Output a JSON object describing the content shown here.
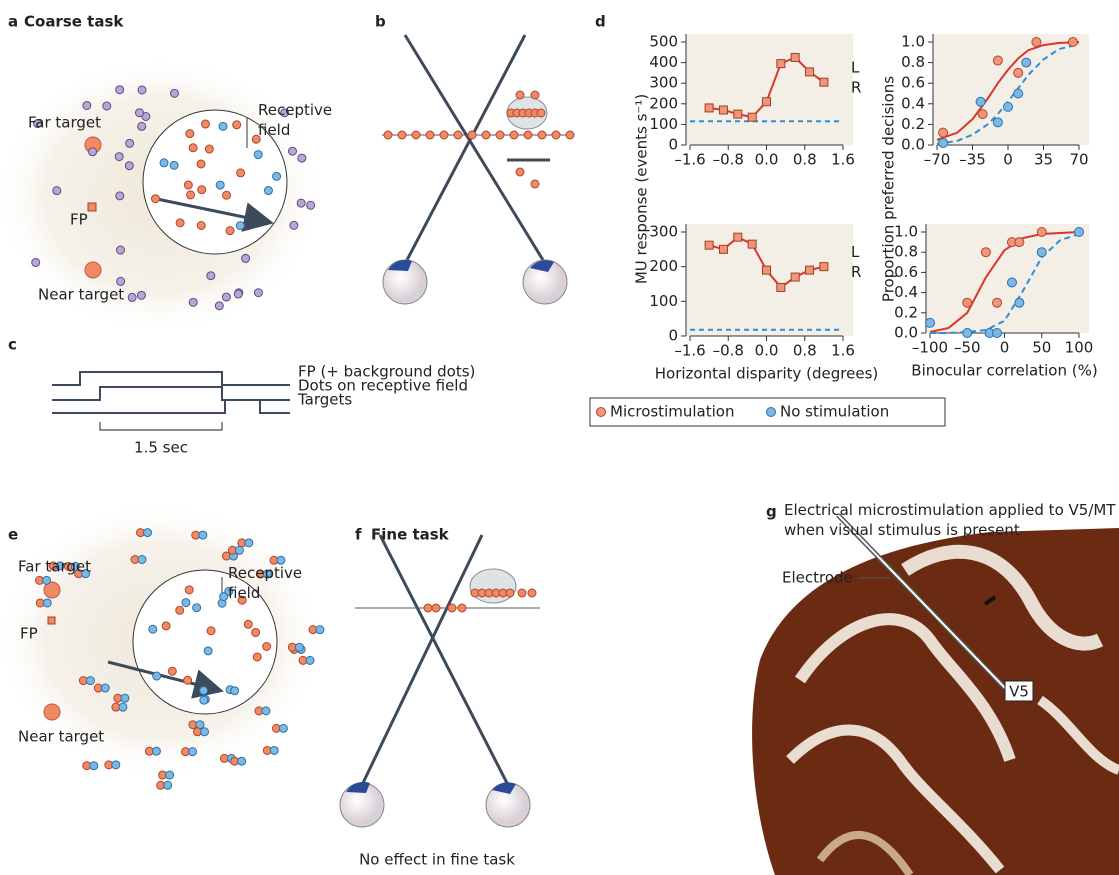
{
  "panels": {
    "a": {
      "label": "a",
      "title": "Coarse task",
      "far_target": "Far target",
      "receptive_field": "Receptive field",
      "fp": "FP",
      "near_target": "Near target"
    },
    "b": {
      "label": "b"
    },
    "c": {
      "label": "c",
      "traces": [
        "FP (+ background dots)",
        "Dots on receptive field",
        "Targets"
      ],
      "scale": "1.5 sec"
    },
    "d": {
      "label": "d"
    },
    "e": {
      "label": "e",
      "far_target": "Far target",
      "receptive_field": "Receptive field",
      "fp": "FP",
      "near_target": "Near target"
    },
    "f": {
      "label": "f",
      "title": "Fine task",
      "caption": "No effect in fine task"
    },
    "g": {
      "label": "g",
      "caption": "Electrical microstimulation applied to V5/MT when visual stimulus is present",
      "electrode": "Electrode",
      "area": "V5"
    }
  },
  "chart_data": [
    {
      "type": "line",
      "ylabel": "MU response (events s⁻¹)",
      "x": [
        -1.2,
        -0.9,
        -0.6,
        -0.3,
        0.0,
        0.3,
        0.6,
        0.9,
        1.2
      ],
      "xlim": [
        -1.6,
        1.6
      ],
      "xticks": [
        {
          "value": -1.6,
          "label": "–1.6"
        },
        {
          "value": -0.8,
          "label": "–0.8"
        },
        {
          "value": 0,
          "label": "0.0"
        },
        0.8,
        1.6
      ],
      "ylim": [
        0,
        500
      ],
      "yticks": [
        0,
        100,
        200,
        300,
        400,
        500
      ],
      "series": [
        {
          "color": "#d9372b",
          "values": [
            180,
            170,
            150,
            135,
            210,
            395,
            425,
            355,
            305
          ]
        }
      ],
      "baseline": 115,
      "baseline_color": "#2f8fd8",
      "annotations": [
        "L",
        "R"
      ]
    },
    {
      "type": "scatter",
      "ylabel": "Proportion preferred decisions",
      "xlim": [
        -70,
        70
      ],
      "xticks": [
        {
          "value": -70,
          "label": "–70"
        },
        {
          "value": -35,
          "label": "–35"
        },
        0,
        35,
        70
      ],
      "ylim": [
        0,
        1
      ],
      "yticks": [
        {
          "value": 0,
          "label": "0.0"
        },
        0.2,
        0.4,
        0.6,
        0.8,
        {
          "value": 1,
          "label": "1.0"
        }
      ],
      "series": [
        {
          "name": "Microstimulation",
          "color": "#f0947a",
          "x": [
            -64,
            -25,
            -10,
            10,
            28,
            64
          ],
          "values": [
            0.12,
            0.3,
            0.82,
            0.7,
            1.0,
            1.0
          ]
        },
        {
          "name": "No stimulation",
          "color": "#7ab8e6",
          "x": [
            -64,
            -27,
            -10,
            0,
            10,
            18
          ],
          "values": [
            0.02,
            0.42,
            0.22,
            0.37,
            0.5,
            0.8
          ]
        }
      ],
      "fits": [
        {
          "color": "#d9372b",
          "dashed": false,
          "x": [
            -70,
            -50,
            -35,
            -20,
            -10,
            0,
            10,
            20,
            35,
            50,
            70
          ],
          "values": [
            0.05,
            0.12,
            0.25,
            0.45,
            0.6,
            0.73,
            0.84,
            0.92,
            0.97,
            0.99,
            1.0
          ]
        },
        {
          "color": "#2f8fd8",
          "dashed": true,
          "x": [
            -70,
            -50,
            -35,
            -20,
            -10,
            0,
            10,
            20,
            35,
            50,
            70
          ],
          "values": [
            0.01,
            0.04,
            0.1,
            0.2,
            0.3,
            0.42,
            0.55,
            0.68,
            0.83,
            0.93,
            0.98
          ]
        }
      ]
    },
    {
      "type": "line",
      "xlabel": "Horizontal disparity (degrees)",
      "x": [
        -1.2,
        -0.9,
        -0.6,
        -0.3,
        0.0,
        0.3,
        0.6,
        0.9,
        1.2
      ],
      "xlim": [
        -1.6,
        1.6
      ],
      "xticks": [
        {
          "value": -1.6,
          "label": "–1.6"
        },
        {
          "value": -0.8,
          "label": "–0.8"
        },
        {
          "value": 0,
          "label": "0.0"
        },
        0.8,
        1.6
      ],
      "ylim": [
        0,
        300
      ],
      "yticks": [
        0,
        100,
        200,
        300
      ],
      "series": [
        {
          "color": "#d9372b",
          "values": [
            262,
            250,
            285,
            265,
            190,
            140,
            170,
            190,
            200
          ]
        }
      ],
      "baseline": 18,
      "baseline_color": "#2f8fd8",
      "annotations": [
        "L",
        "R"
      ]
    },
    {
      "type": "scatter",
      "xlabel": "Binocular correlation (%)",
      "xlim": [
        -100,
        100
      ],
      "xticks": [
        {
          "value": -100,
          "label": "–100"
        },
        {
          "value": -50,
          "label": "–50"
        },
        0,
        50,
        100
      ],
      "ylim": [
        0,
        1
      ],
      "yticks": [
        {
          "value": 0,
          "label": "0.0"
        },
        0.2,
        0.4,
        0.6,
        0.8,
        {
          "value": 1,
          "label": "1.0"
        }
      ],
      "series": [
        {
          "color": "#f0947a",
          "x": [
            -50,
            -25,
            -10,
            10,
            20,
            50
          ],
          "values": [
            0.3,
            0.8,
            0.3,
            0.9,
            0.9,
            1.0
          ]
        },
        {
          "color": "#7ab8e6",
          "x": [
            -100,
            -50,
            -20,
            -10,
            10,
            20,
            50,
            100
          ],
          "values": [
            0.1,
            0.0,
            0.0,
            0.0,
            0.5,
            0.3,
            0.8,
            1.0
          ]
        }
      ],
      "fits": [
        {
          "color": "#d9372b",
          "dashed": false,
          "x": [
            -100,
            -75,
            -50,
            -25,
            0,
            25,
            50,
            75,
            100
          ],
          "values": [
            0.01,
            0.05,
            0.2,
            0.55,
            0.82,
            0.94,
            0.98,
            0.99,
            1.0
          ]
        },
        {
          "color": "#2f8fd8",
          "dashed": true,
          "x": [
            -100,
            -75,
            -50,
            -25,
            0,
            25,
            50,
            75,
            100
          ],
          "values": [
            0.0,
            0.0,
            0.01,
            0.03,
            0.12,
            0.42,
            0.75,
            0.92,
            0.98
          ]
        }
      ]
    }
  ]
}
